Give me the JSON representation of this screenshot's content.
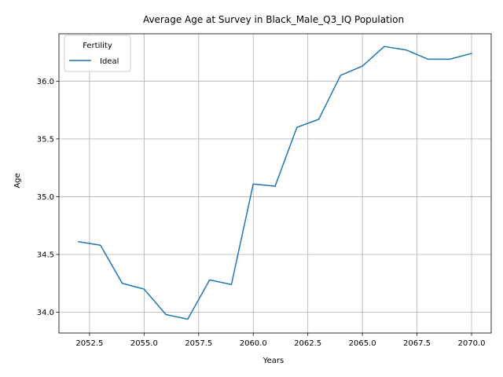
{
  "chart_data": {
    "type": "line",
    "title": "Average Age at Survey in Black_Male_Q3_IQ Population",
    "xlabel": "Years",
    "ylabel": "Age",
    "xlim": [
      2051.1,
      2070.9
    ],
    "ylim": [
      33.82,
      36.41
    ],
    "xticks": [
      2052.5,
      2055.0,
      2057.5,
      2060.0,
      2062.5,
      2065.0,
      2067.5,
      2070.0
    ],
    "xtick_labels": [
      "2052.5",
      "2055.0",
      "2057.5",
      "2060.0",
      "2062.5",
      "2065.0",
      "2067.5",
      "2070.0"
    ],
    "yticks": [
      34.0,
      34.5,
      35.0,
      35.5,
      36.0
    ],
    "ytick_labels": [
      "34.0",
      "34.5",
      "35.0",
      "35.5",
      "36.0"
    ],
    "grid": true,
    "legend": {
      "title": "Fertility",
      "placement": "top-left"
    },
    "series": [
      {
        "name": "Ideal",
        "color": "#1f77b4",
        "x": [
          2052,
          2053,
          2054,
          2055,
          2056,
          2057,
          2058,
          2059,
          2060,
          2061,
          2062,
          2063,
          2064,
          2065,
          2066,
          2067,
          2068,
          2069,
          2070
        ],
        "y": [
          34.61,
          34.58,
          34.25,
          34.2,
          33.98,
          33.94,
          34.28,
          34.24,
          35.11,
          35.09,
          35.6,
          35.67,
          36.05,
          36.13,
          36.3,
          36.27,
          36.19,
          36.19,
          36.24
        ]
      }
    ]
  }
}
